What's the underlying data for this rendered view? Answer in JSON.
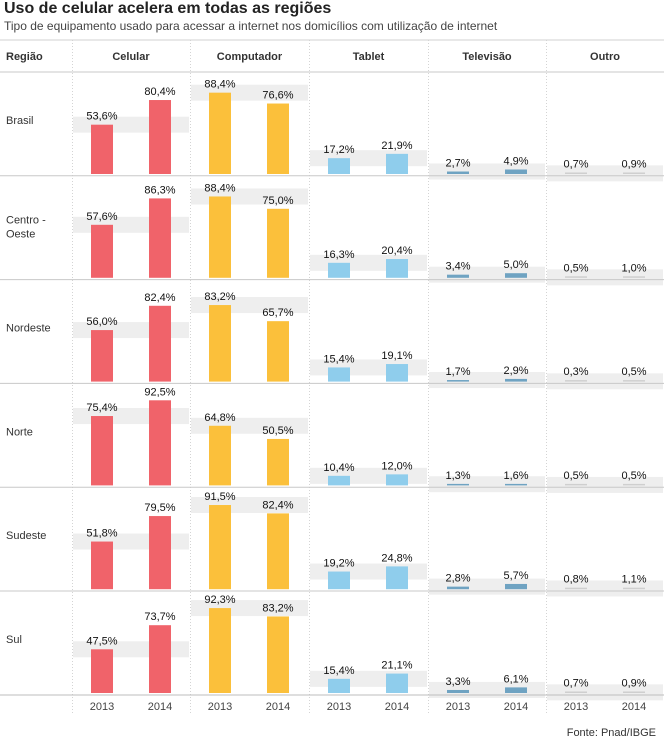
{
  "title": "Uso de celular acelera em todas as regiões",
  "subtitle": "Tipo de equipamento usado para acessar a internet nos domicílios com utilização de internet",
  "source": "Fonte: Pnad/IBGE",
  "chart_data": {
    "type": "bar",
    "row_header": "Região",
    "x_categories": [
      "2013",
      "2014"
    ],
    "ylim": [
      0,
      100
    ],
    "columns": [
      {
        "name": "Celular",
        "color": "#f0636a"
      },
      {
        "name": "Computador",
        "color": "#fbc03b"
      },
      {
        "name": "Tablet",
        "color": "#8fcdec"
      },
      {
        "name": "Televisão",
        "color": "#6fa3c2"
      },
      {
        "name": "Outro",
        "color": "#cfcfcf"
      }
    ],
    "rows": [
      {
        "name": "Brasil",
        "values": [
          [
            53.6,
            80.4
          ],
          [
            88.4,
            76.6
          ],
          [
            17.2,
            21.9
          ],
          [
            2.7,
            4.9
          ],
          [
            0.7,
            0.9
          ]
        ],
        "labels": [
          [
            "53,6%",
            "80,4%"
          ],
          [
            "88,4%",
            "76,6%"
          ],
          [
            "17,2%",
            "21,9%"
          ],
          [
            "2,7%",
            "4,9%"
          ],
          [
            "0,7%",
            "0,9%"
          ]
        ]
      },
      {
        "name": "Centro -\nOeste",
        "values": [
          [
            57.6,
            86.3
          ],
          [
            88.4,
            75.0
          ],
          [
            16.3,
            20.4
          ],
          [
            3.4,
            5.0
          ],
          [
            0.5,
            1.0
          ]
        ],
        "labels": [
          [
            "57,6%",
            "86,3%"
          ],
          [
            "88,4%",
            "75,0%"
          ],
          [
            "16,3%",
            "20,4%"
          ],
          [
            "3,4%",
            "5,0%"
          ],
          [
            "0,5%",
            "1,0%"
          ]
        ]
      },
      {
        "name": "Nordeste",
        "values": [
          [
            56.0,
            82.4
          ],
          [
            83.2,
            65.7
          ],
          [
            15.4,
            19.1
          ],
          [
            1.7,
            2.9
          ],
          [
            0.3,
            0.5
          ]
        ],
        "labels": [
          [
            "56,0%",
            "82,4%"
          ],
          [
            "83,2%",
            "65,7%"
          ],
          [
            "15,4%",
            "19,1%"
          ],
          [
            "1,7%",
            "2,9%"
          ],
          [
            "0,3%",
            "0,5%"
          ]
        ]
      },
      {
        "name": "Norte",
        "values": [
          [
            75.4,
            92.5
          ],
          [
            64.8,
            50.5
          ],
          [
            10.4,
            12.0
          ],
          [
            1.3,
            1.6
          ],
          [
            0.5,
            0.5
          ]
        ],
        "labels": [
          [
            "75,4%",
            "92,5%"
          ],
          [
            "64,8%",
            "50,5%"
          ],
          [
            "10,4%",
            "12,0%"
          ],
          [
            "1,3%",
            "1,6%"
          ],
          [
            "0,5%",
            "0,5%"
          ]
        ]
      },
      {
        "name": "Sudeste",
        "values": [
          [
            51.8,
            79.5
          ],
          [
            91.5,
            82.4
          ],
          [
            19.2,
            24.8
          ],
          [
            2.8,
            5.7
          ],
          [
            0.8,
            1.1
          ]
        ],
        "labels": [
          [
            "51,8%",
            "79,5%"
          ],
          [
            "91,5%",
            "82,4%"
          ],
          [
            "19,2%",
            "24,8%"
          ],
          [
            "2,8%",
            "5,7%"
          ],
          [
            "0,8%",
            "1,1%"
          ]
        ]
      },
      {
        "name": "Sul",
        "values": [
          [
            47.5,
            73.7
          ],
          [
            92.3,
            83.2
          ],
          [
            15.4,
            21.1
          ],
          [
            3.3,
            6.1
          ],
          [
            0.7,
            0.9
          ]
        ],
        "labels": [
          [
            "47,5%",
            "73,7%"
          ],
          [
            "92,3%",
            "83,2%"
          ],
          [
            "15,4%",
            "21,1%"
          ],
          [
            "3,3%",
            "6,1%"
          ],
          [
            "0,7%",
            "0,9%"
          ]
        ]
      }
    ]
  }
}
